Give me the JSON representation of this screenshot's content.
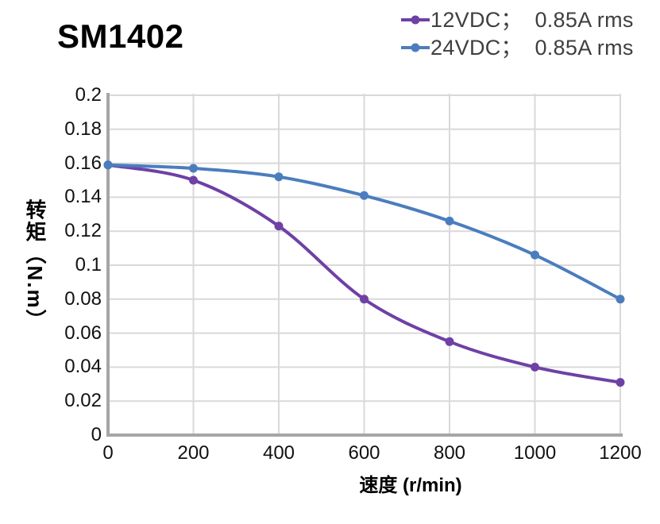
{
  "title": "SM1402",
  "chart_data": {
    "type": "line",
    "x": [
      0,
      200,
      400,
      600,
      800,
      1000,
      1200
    ],
    "series": [
      {
        "name": "12VDC；  0.85A rms",
        "color": "#6e41a5",
        "values": [
          0.159,
          0.15,
          0.123,
          0.08,
          0.055,
          0.04,
          0.031
        ]
      },
      {
        "name": "24VDC；  0.85A rms",
        "color": "#4b7dbe",
        "values": [
          0.159,
          0.157,
          0.152,
          0.141,
          0.126,
          0.106,
          0.08
        ]
      }
    ],
    "title": "SM1402",
    "xlabel": "速度 (r/min)",
    "ylabel": "转矩（N.m）",
    "xlim": [
      0,
      1200
    ],
    "ylim": [
      0,
      0.2
    ],
    "x_ticks": [
      0,
      200,
      400,
      600,
      800,
      1000,
      1200
    ],
    "x_tick_labels": [
      "0",
      "200",
      "400",
      "600",
      "800",
      "1000",
      "1200"
    ],
    "y_ticks": [
      0,
      0.02,
      0.04,
      0.06,
      0.08,
      0.1,
      0.12,
      0.14,
      0.16,
      0.18,
      0.2
    ],
    "y_tick_labels": [
      "0",
      "0.02",
      "0.04",
      "0.06",
      "0.08",
      "0.1",
      "0.12",
      "0.14",
      "0.16",
      "0.18",
      "0.2"
    ],
    "grid": true,
    "smooth_lines": true,
    "legend_position": "top-right"
  },
  "colors": {
    "grid": "#d9d9d9",
    "axis_spine": "#a6a6a6",
    "tick_text": "#111111",
    "legend_text": "#3f3f3f",
    "title_text": "#000000",
    "background": "#ffffff"
  }
}
